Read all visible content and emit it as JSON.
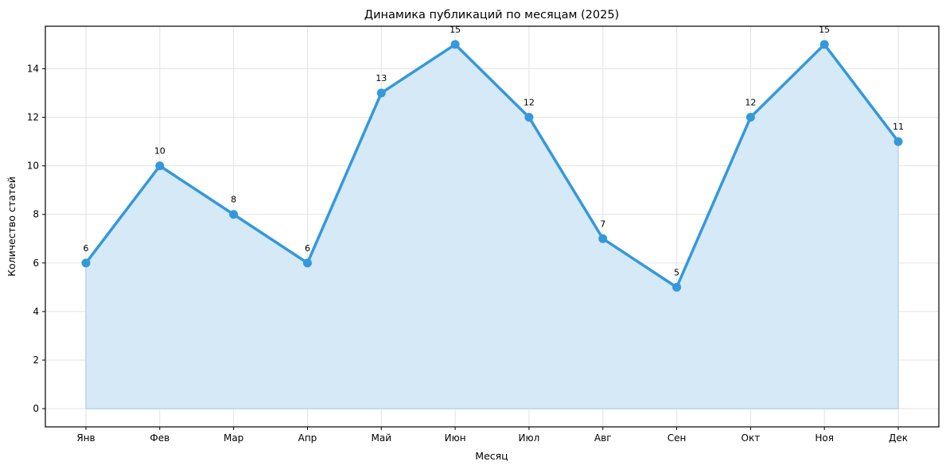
{
  "chart_data": {
    "type": "area",
    "title": "Динамика публикаций по месяцам (2025)",
    "xlabel": "Месяц",
    "ylabel": "Количество статей",
    "categories": [
      "Янв",
      "Фев",
      "Мар",
      "Апр",
      "Май",
      "Июн",
      "Июл",
      "Авг",
      "Сен",
      "Окт",
      "Ноя",
      "Дек"
    ],
    "values": [
      6,
      10,
      8,
      6,
      13,
      15,
      12,
      7,
      5,
      12,
      15,
      11
    ],
    "yticks": [
      0,
      2,
      4,
      6,
      8,
      10,
      12,
      14
    ],
    "ylim": [
      -0.75,
      15.75
    ],
    "grid": true,
    "legend": null,
    "line_color": "#3498db",
    "fill_color": "#d6e9f7",
    "data_labels": true
  }
}
